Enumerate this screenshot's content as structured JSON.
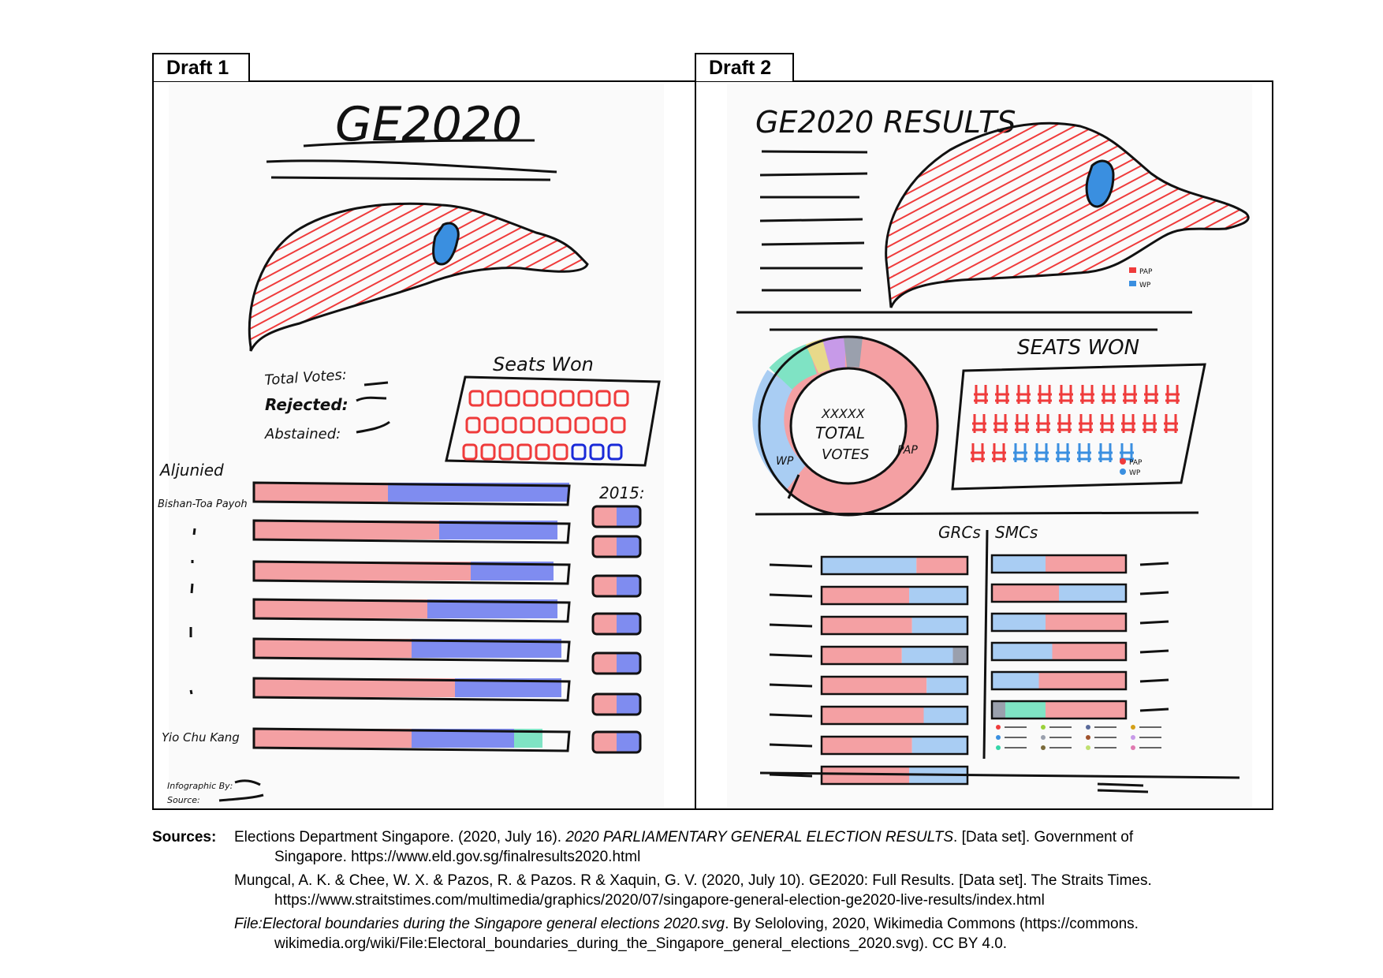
{
  "tabs": {
    "draft1": "Draft 1",
    "draft2": "Draft 2"
  },
  "draft1": {
    "title": "GE2020",
    "seats_label": "Seats Won",
    "stats": [
      "Total Votes:",
      "Rejected:",
      "Abstained:"
    ],
    "year_label": "2015:",
    "row_labels": [
      "Aljunied",
      "Bishan-Toa Payoh",
      "Yio Chu Kang"
    ],
    "footer_labels": [
      "Infographic By:",
      "Source:"
    ]
  },
  "draft2": {
    "title": "GE2020 RESULTS",
    "legend": [
      "PAP",
      "WP"
    ],
    "seats_label": "SEATS WON",
    "donut_text": [
      "XXXXX",
      "TOTAL",
      "VOTES"
    ],
    "donut_labels": [
      "PAP",
      "WP"
    ],
    "seat_legend": [
      "PAP",
      "WP"
    ],
    "grc_label": "GRCs",
    "smc_label": "SMCs"
  },
  "colors": {
    "pap": "#ef3b3b",
    "wp": "#3a8fe0",
    "pap_light": "#f4a0a3",
    "wp_light": "#a9cdf3",
    "wp_blue": "#7f8cf0",
    "teal": "#7fe3c4"
  },
  "sources": {
    "label": "Sources:",
    "entries": [
      {
        "before": "Elections Department Singapore. (2020, July 16). ",
        "italic": "2020 PARLIAMENTARY GENERAL ELECTION RESULTS",
        "after": ". [Data set]. Government of",
        "cont": "Singapore. https://www.eld.gov.sg/finalresults2020.html"
      },
      {
        "before": "Mungcal, A. K. & Chee, W. X. & Pazos, R. & Pazos. R & Xaquin, G. V. (2020, July 10). GE2020: Full Results. [Data set]. The Straits Times.",
        "italic": "",
        "after": "",
        "cont": "https://www.straitstimes.com/multimedia/graphics/2020/07/singapore-general-election-ge2020-live-results/index.html"
      },
      {
        "before": "",
        "italic": "File:Electoral boundaries during the Singapore general elections 2020.svg",
        "after": ". By Seloloving, 2020, Wikimedia Commons (https://commons.",
        "cont": "wikimedia.org/wiki/File:Electoral_boundaries_during_the_Singapore_general_elections_2020.svg). CC BY 4.0."
      }
    ]
  }
}
